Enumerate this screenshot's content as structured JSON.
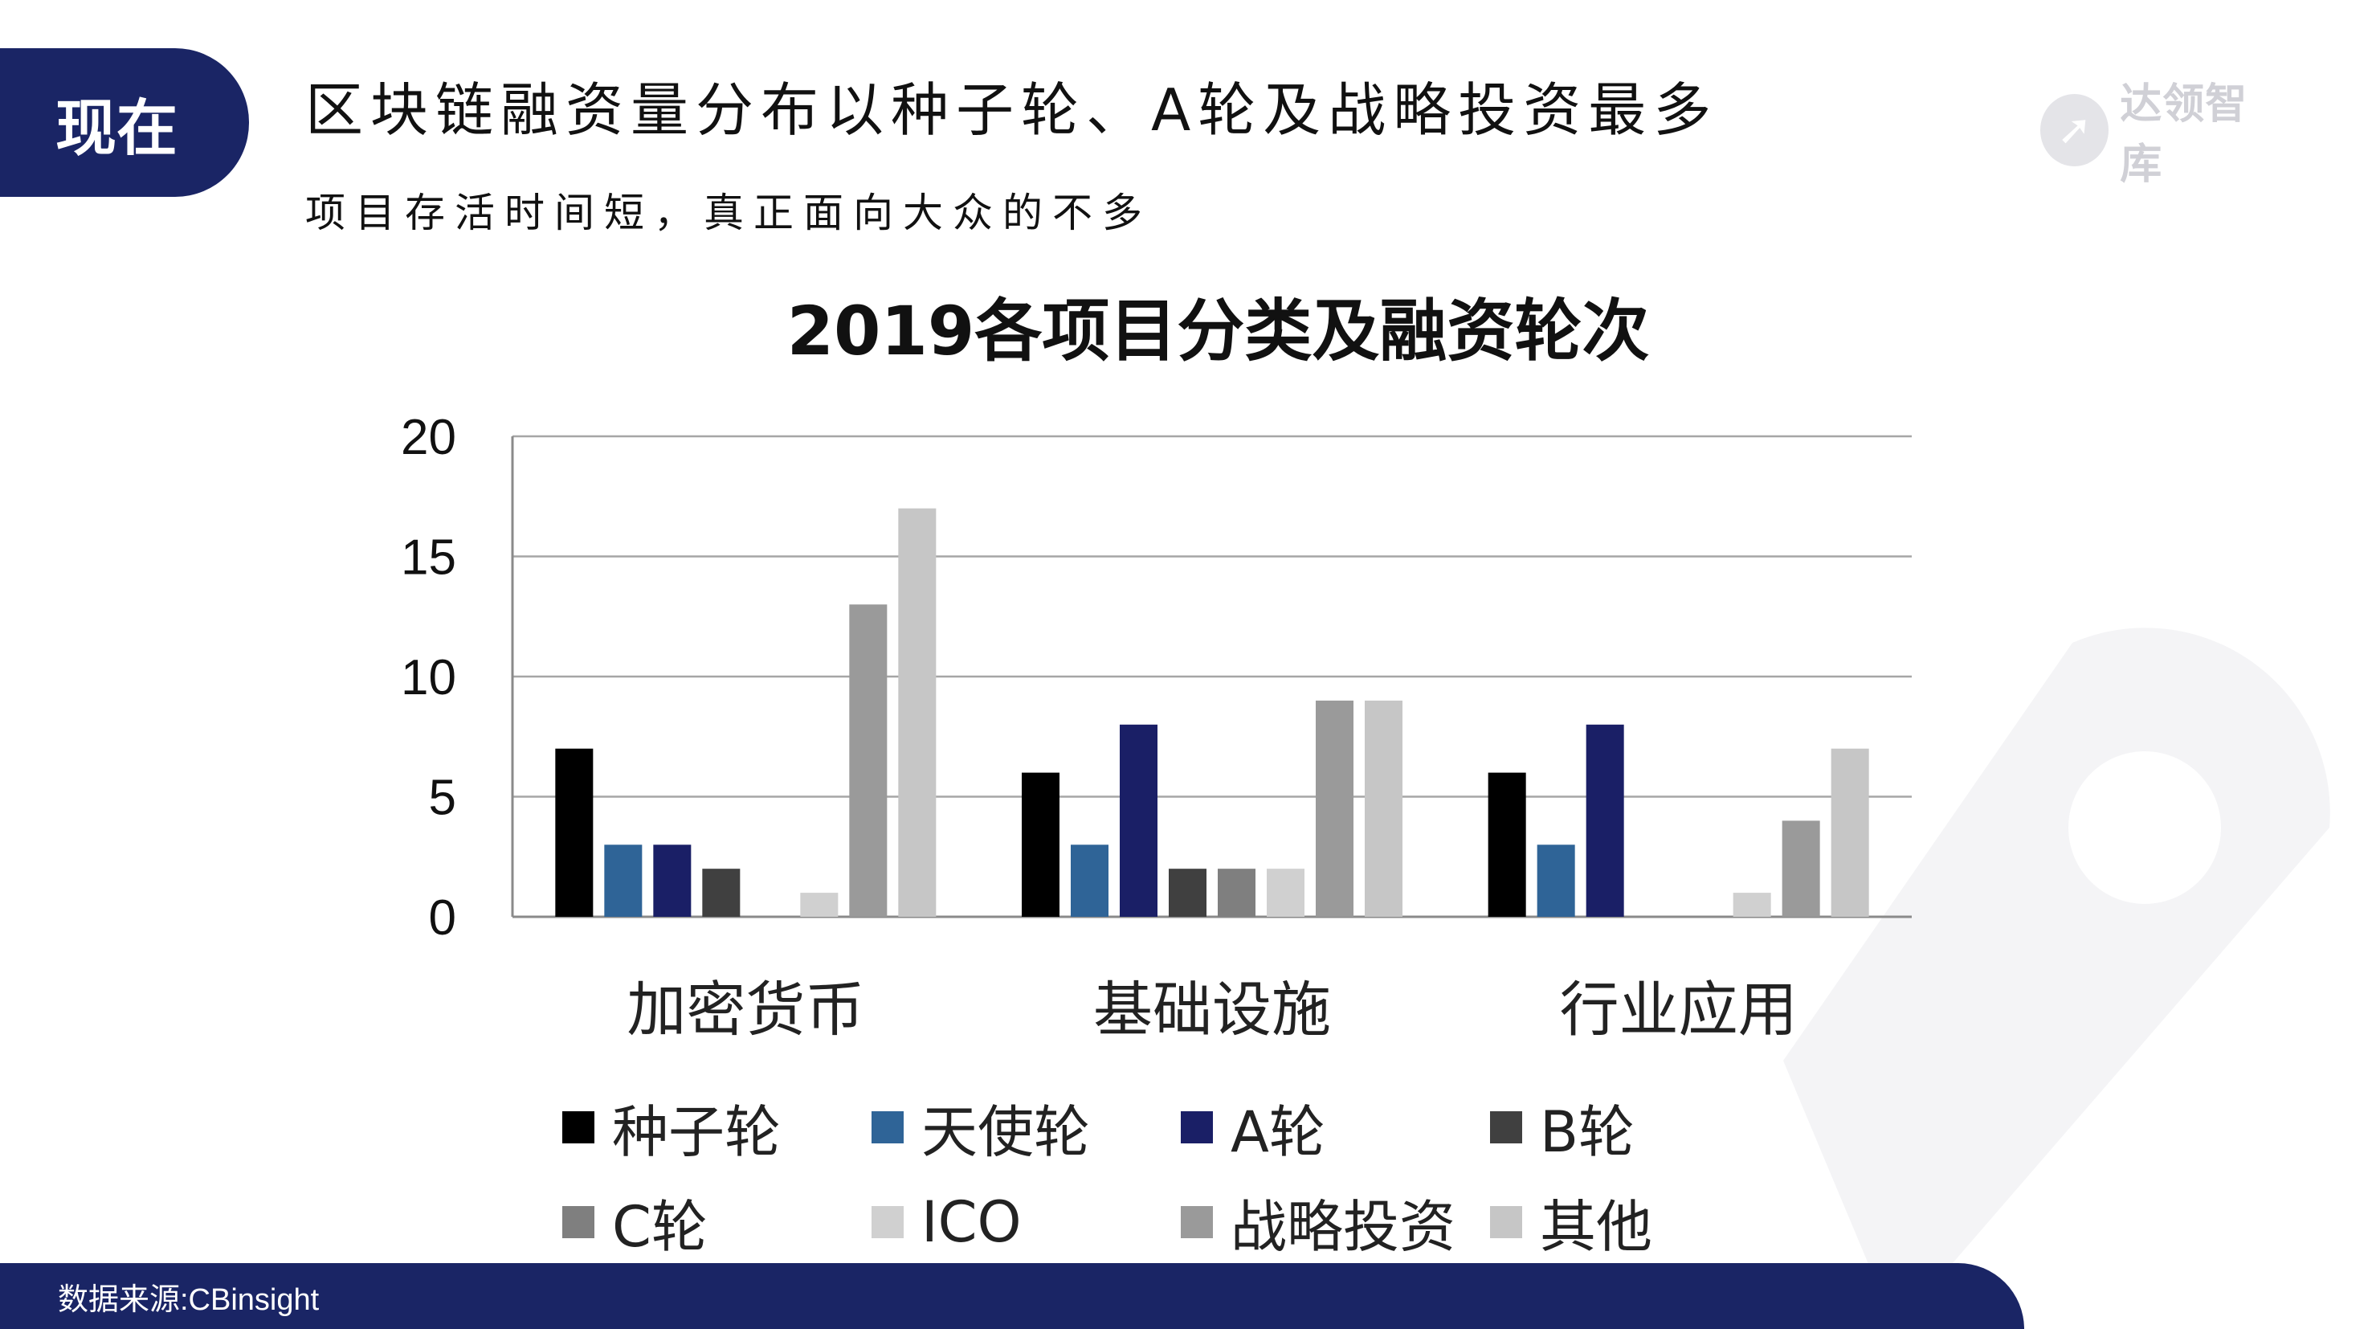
{
  "header": {
    "tab_label": "现在",
    "headline": "区块链融资量分布以种子轮、A轮及战略投资最多",
    "subline": "项目存活时间短，真正面向大众的不多"
  },
  "logo": {
    "text": "达领智库",
    "icon": "rocket-logo-icon"
  },
  "footer": {
    "source": "数据来源:CBinsight"
  },
  "chart_data": {
    "type": "bar",
    "title": "2019各项目分类及融资轮次",
    "categories": [
      "加密货币",
      "基础设施",
      "行业应用"
    ],
    "ylim": [
      0,
      20
    ],
    "yticks": [
      "0",
      "5",
      "10",
      "15",
      "20"
    ],
    "grid": true,
    "legend_position": "bottom",
    "series": [
      {
        "name": "种子轮",
        "color": "#000000",
        "values": [
          7,
          6,
          6
        ]
      },
      {
        "name": "天使轮",
        "color": "#2f6497",
        "values": [
          3,
          3,
          3
        ]
      },
      {
        "name": "A轮",
        "color": "#1a1f66",
        "values": [
          3,
          8,
          8
        ]
      },
      {
        "name": "B轮",
        "color": "#404040",
        "values": [
          2,
          2,
          0
        ]
      },
      {
        "name": "C轮",
        "color": "#7f7f7f",
        "values": [
          0,
          2,
          0
        ]
      },
      {
        "name": "ICO",
        "color": "#d0d0d0",
        "values": [
          1,
          2,
          1
        ]
      },
      {
        "name": "战略投资",
        "color": "#9a9a9a",
        "values": [
          13,
          9,
          4
        ]
      },
      {
        "name": "其他",
        "color": "#c6c6c6",
        "values": [
          17,
          9,
          7
        ]
      }
    ]
  }
}
